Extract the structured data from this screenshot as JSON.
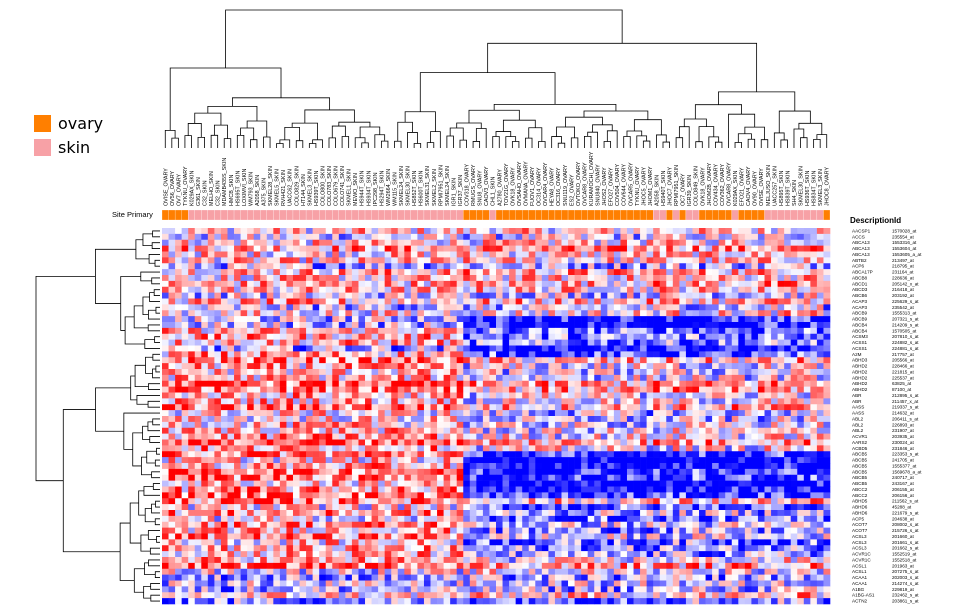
{
  "legend": {
    "items": [
      {
        "label": "ovary",
        "color": "#ff7f00"
      },
      {
        "label": "skin",
        "color": "#f7a1a6"
      }
    ]
  },
  "site_primary_label": "Site Primary",
  "description_header": "DescriptionId",
  "chart_data": {
    "type": "heatmap",
    "color_scale": {
      "low": "#0000ff",
      "mid": "#ffffff",
      "high": "#ff0000"
    },
    "column_annotation": "Site Primary",
    "columns": [
      {
        "name": "OVISE_OVARY",
        "site": "ovary"
      },
      {
        "name": "OV56_OVARY",
        "site": "ovary"
      },
      {
        "name": "OV7_OVARY",
        "site": "ovary"
      },
      {
        "name": "TYKNU_OVARY",
        "site": "ovary"
      },
      {
        "name": "K029AX_SKIN",
        "site": "skin"
      },
      {
        "name": "G361_SKIN",
        "site": "skin"
      },
      {
        "name": "C32_SKIN",
        "site": "skin"
      },
      {
        "name": "MELHO_SKIN",
        "site": "skin"
      },
      {
        "name": "C32_SKIN",
        "site": "skin"
      },
      {
        "name": "MDAMB435S_SKIN",
        "site": "skin"
      },
      {
        "name": "HMCB_SKIN",
        "site": "skin"
      },
      {
        "name": "HS695T_SKIN",
        "site": "skin"
      },
      {
        "name": "LOXIMVI_SKIN",
        "site": "skin"
      },
      {
        "name": "WM793_SKIN",
        "site": "skin"
      },
      {
        "name": "A2058_SKIN",
        "site": "skin"
      },
      {
        "name": "A375_SKIN",
        "site": "skin"
      },
      {
        "name": "SKMEL28_SKIN",
        "site": "skin"
      },
      {
        "name": "SKMEL5_SKIN",
        "site": "skin"
      },
      {
        "name": "RVH421_SKIN",
        "site": "skin"
      },
      {
        "name": "UACC62_SKIN",
        "site": "skin"
      },
      {
        "name": "COLO829_SKIN",
        "site": "skin"
      },
      {
        "name": "HT144_SKIN",
        "site": "skin"
      },
      {
        "name": "SKMEL3_SKIN",
        "site": "skin"
      },
      {
        "name": "HS939T_SKIN",
        "site": "skin"
      },
      {
        "name": "COLO800_SKIN",
        "site": "skin"
      },
      {
        "name": "COLO783_SKIN",
        "site": "skin"
      },
      {
        "name": "COLO679_SKIN",
        "site": "skin"
      },
      {
        "name": "COLO741_SKIN",
        "site": "skin"
      },
      {
        "name": "SKMEL1_SKIN",
        "site": "skin"
      },
      {
        "name": "MEWO_SKIN",
        "site": "skin"
      },
      {
        "name": "HS944T_SKIN",
        "site": "skin"
      },
      {
        "name": "HS934T_SKIN",
        "site": "skin"
      },
      {
        "name": "IPC298_SKIN",
        "site": "skin"
      },
      {
        "name": "HS294T_SKIN",
        "site": "skin"
      },
      {
        "name": "WM2664_SKIN",
        "site": "skin"
      },
      {
        "name": "WM115_SKIN",
        "site": "skin"
      },
      {
        "name": "SKMEL24_SKIN",
        "site": "skin"
      },
      {
        "name": "SKMEL30_SKIN",
        "site": "skin"
      },
      {
        "name": "HS852T_SKIN",
        "site": "skin"
      },
      {
        "name": "HS600T_SKIN",
        "site": "skin"
      },
      {
        "name": "SKMEL31_SKIN",
        "site": "skin"
      },
      {
        "name": "SKMEL2_SKIN",
        "site": "skin"
      },
      {
        "name": "RPMI7951_SKIN",
        "site": "skin"
      },
      {
        "name": "SKMEL24_SKIN",
        "site": "skin"
      },
      {
        "name": "IGR1_SKIN",
        "site": "skin"
      },
      {
        "name": "IGR37_SKIN",
        "site": "skin"
      },
      {
        "name": "COV318_OVARY",
        "site": "ovary"
      },
      {
        "name": "RMUGS_OVARY",
        "site": "ovary"
      },
      {
        "name": "SNU8_OVARY",
        "site": "ovary"
      },
      {
        "name": "CAOV3_OVARY",
        "site": "ovary"
      },
      {
        "name": "CHL1_SKIN",
        "site": "skin"
      },
      {
        "name": "A2780_OVARY",
        "site": "ovary"
      },
      {
        "name": "TOV21G_OVARY",
        "site": "ovary"
      },
      {
        "name": "OVK18_OVARY",
        "site": "ovary"
      },
      {
        "name": "OVSAHO_OVARY",
        "site": "ovary"
      },
      {
        "name": "OVMANA_OVARY",
        "site": "ovary"
      },
      {
        "name": "FUOV1_OVARY",
        "site": "ovary"
      },
      {
        "name": "OC314_OVARY",
        "site": "ovary"
      },
      {
        "name": "OVCAR4_OVARY",
        "site": "ovary"
      },
      {
        "name": "HEYA8_OVARY",
        "site": "ovary"
      },
      {
        "name": "OC316_OVARY",
        "site": "ovary"
      },
      {
        "name": "SNU119_OVARY",
        "site": "ovary"
      },
      {
        "name": "ES2_OVARY",
        "site": "ovary"
      },
      {
        "name": "OVTOKO_OVARY",
        "site": "ovary"
      },
      {
        "name": "OVCAR8_OVARY",
        "site": "ovary"
      },
      {
        "name": "KURAMOCHI_OVARY",
        "site": "ovary"
      },
      {
        "name": "SNU840_OVARY",
        "site": "ovary"
      },
      {
        "name": "JHOS2_OVARY",
        "site": "ovary"
      },
      {
        "name": "EFO27_OVARY",
        "site": "ovary"
      },
      {
        "name": "COV504_OVARY",
        "site": "ovary"
      },
      {
        "name": "COV644_OVARY",
        "site": "ovary"
      },
      {
        "name": "OVCAR5_OVARY",
        "site": "ovary"
      },
      {
        "name": "TYKNU_OVARY",
        "site": "ovary"
      },
      {
        "name": "JHOC5_OVARY",
        "site": "ovary"
      },
      {
        "name": "JHOM1_OVARY",
        "site": "ovary"
      },
      {
        "name": "A2058_SKIN",
        "site": "skin"
      },
      {
        "name": "HS940T_SKIN",
        "site": "skin"
      },
      {
        "name": "JHOC7_OVARY",
        "site": "ovary"
      },
      {
        "name": "RPMI7951_SKIN",
        "site": "skin"
      },
      {
        "name": "OC7_OVARY",
        "site": "ovary"
      },
      {
        "name": "IGR39_SKIN",
        "site": "skin"
      },
      {
        "name": "COLO849_SKIN",
        "site": "skin"
      },
      {
        "name": "OVK18_OVARY",
        "site": "ovary"
      },
      {
        "name": "JHOM2B_OVARY",
        "site": "ovary"
      },
      {
        "name": "COV434_OVARY",
        "site": "ovary"
      },
      {
        "name": "COV362_OVARY",
        "site": "ovary"
      },
      {
        "name": "OVCAR8_OVARY",
        "site": "ovary"
      },
      {
        "name": "K029AX_SKIN",
        "site": "skin"
      },
      {
        "name": "EFO21_OVARY",
        "site": "ovary"
      },
      {
        "name": "CAOV4_OVARY",
        "site": "ovary"
      },
      {
        "name": "OV90_OVARY",
        "site": "ovary"
      },
      {
        "name": "OVISE_OVARY",
        "site": "ovary"
      },
      {
        "name": "MELJUSO_SKIN",
        "site": "skin"
      },
      {
        "name": "UACC257_SKIN",
        "site": "skin"
      },
      {
        "name": "HS895T_SKIN",
        "site": "skin"
      },
      {
        "name": "HS839T_SKIN",
        "site": "skin"
      },
      {
        "name": "SH4_SKIN",
        "site": "skin"
      },
      {
        "name": "SKMEL30_SKIN",
        "site": "skin"
      },
      {
        "name": "HS936T_SKIN",
        "site": "skin"
      },
      {
        "name": "HS834T_SKIN",
        "site": "skin"
      },
      {
        "name": "SKMEL3_SKIN",
        "site": "skin"
      },
      {
        "name": "JHOC8_OVARY",
        "site": "ovary"
      }
    ],
    "rows": [
      {
        "gene": "AACSP1",
        "id": "1570028_at"
      },
      {
        "gene": "ACCS",
        "id": "235554_at"
      },
      {
        "gene": "ABCA13",
        "id": "1553316_at"
      },
      {
        "gene": "ABCA13",
        "id": "1553604_at"
      },
      {
        "gene": "ABCA13",
        "id": "1553605_a_at"
      },
      {
        "gene": "ABTB2",
        "id": "213497_at"
      },
      {
        "gene": "ACP6",
        "id": "218795_at"
      },
      {
        "gene": "ABCA17P",
        "id": "231164_at"
      },
      {
        "gene": "ABCB8",
        "id": "228636_at"
      },
      {
        "gene": "ABCD1",
        "id": "205142_x_at"
      },
      {
        "gene": "ABCD3",
        "id": "216418_at"
      },
      {
        "gene": "ABCB6",
        "id": "203192_at"
      },
      {
        "gene": "ACAP3",
        "id": "225629_s_at"
      },
      {
        "gene": "ACAP3",
        "id": "235542_at"
      },
      {
        "gene": "ABCB9",
        "id": "1555313_at"
      },
      {
        "gene": "ABCB9",
        "id": "207321_s_at"
      },
      {
        "gene": "ABCB4",
        "id": "214209_s_at"
      },
      {
        "gene": "ABCB4",
        "id": "1570505_at"
      },
      {
        "gene": "ACSM3",
        "id": "207810_s_at"
      },
      {
        "gene": "ACSS1",
        "id": "224882_s_at"
      },
      {
        "gene": "ACSS1",
        "id": "224881_s_at"
      },
      {
        "gene": "A2M",
        "id": "217757_at"
      },
      {
        "gene": "ABHD3",
        "id": "205566_at"
      },
      {
        "gene": "ABHD2",
        "id": "228466_at"
      },
      {
        "gene": "ABHD2",
        "id": "221815_at"
      },
      {
        "gene": "ABHD2",
        "id": "225537_at"
      },
      {
        "gene": "ABHD2",
        "id": "63825_at"
      },
      {
        "gene": "ABHD2",
        "id": "87100_at"
      },
      {
        "gene": "ABR",
        "id": "212895_s_at"
      },
      {
        "gene": "ABR",
        "id": "211457_x_at"
      },
      {
        "gene": "AASS",
        "id": "219337_s_at"
      },
      {
        "gene": "AASS",
        "id": "214632_at"
      },
      {
        "gene": "ABL2",
        "id": "206411_s_at"
      },
      {
        "gene": "ABL2",
        "id": "226893_at"
      },
      {
        "gene": "ABL2",
        "id": "231907_at"
      },
      {
        "gene": "ACVR1",
        "id": "203935_at"
      },
      {
        "gene": "AARS2",
        "id": "230024_at"
      },
      {
        "gene": "ACBD5",
        "id": "231846_at"
      },
      {
        "gene": "ABCB5",
        "id": "223353_s_at"
      },
      {
        "gene": "ABCB5",
        "id": "241705_at"
      },
      {
        "gene": "ABCB5",
        "id": "1555377_at"
      },
      {
        "gene": "ABCB5",
        "id": "1569678_a_at"
      },
      {
        "gene": "ABCB5",
        "id": "240717_at"
      },
      {
        "gene": "ABCB5",
        "id": "243167_at"
      },
      {
        "gene": "ABCC2",
        "id": "206155_at"
      },
      {
        "gene": "ABCC2",
        "id": "206156_at"
      },
      {
        "gene": "ABHD5",
        "id": "211562_s_at"
      },
      {
        "gene": "ABHD6",
        "id": "45288_at"
      },
      {
        "gene": "ABHD6",
        "id": "221679_s_at"
      },
      {
        "gene": "ACP5",
        "id": "204638_at"
      },
      {
        "gene": "ACOT7",
        "id": "208002_s_at"
      },
      {
        "gene": "ACOT7",
        "id": "215726_s_at"
      },
      {
        "gene": "ACSL3",
        "id": "201660_at"
      },
      {
        "gene": "ACSL3",
        "id": "201661_s_at"
      },
      {
        "gene": "ACSL3",
        "id": "201662_s_at"
      },
      {
        "gene": "ACVR1C",
        "id": "1552519_at"
      },
      {
        "gene": "ACVR1C",
        "id": "1552518_at"
      },
      {
        "gene": "ACSL1",
        "id": "201963_at"
      },
      {
        "gene": "ACSL1",
        "id": "207275_s_at"
      },
      {
        "gene": "ACAA1",
        "id": "202003_s_at"
      },
      {
        "gene": "ACAA1",
        "id": "214274_s_at"
      },
      {
        "gene": "A1BG",
        "id": "229819_at"
      },
      {
        "gene": "A1BG-AS1",
        "id": "232462_s_at"
      },
      {
        "gene": "ACTN2",
        "id": "203861_s_at"
      }
    ],
    "cluster_pattern": "skin columns show higher expression (red) in the lower half of rows; ovary columns show strong low expression (blue) bands in the middle rows"
  }
}
